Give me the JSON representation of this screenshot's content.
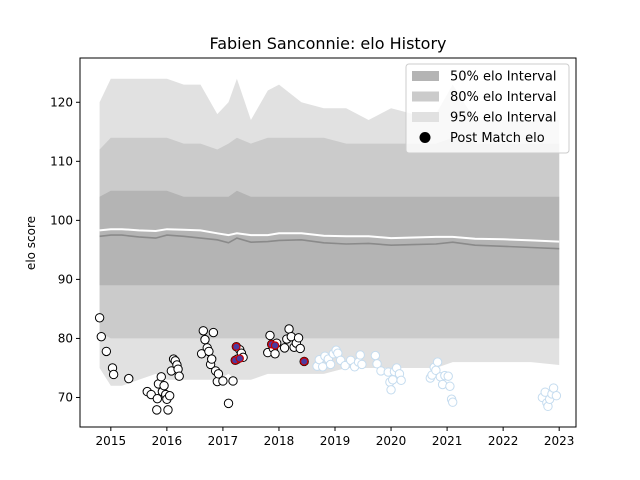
{
  "chart_data": {
    "type": "scatter",
    "title": "Fabien Sanconnie: elo History",
    "xlabel": "",
    "ylabel": "elo score",
    "xlim": [
      2014.45,
      2023.3
    ],
    "ylim": [
      65,
      127.5
    ],
    "x_ticks": [
      2015,
      2016,
      2017,
      2018,
      2019,
      2020,
      2021,
      2022,
      2023
    ],
    "y_ticks": [
      70,
      80,
      90,
      100,
      110,
      120
    ],
    "legend_position": "top-right",
    "legend": [
      {
        "label": "50% elo Interval",
        "kind": "band",
        "color": "#b4b4b4"
      },
      {
        "label": "80% elo Interval",
        "kind": "band",
        "color": "#cbcbcb"
      },
      {
        "label": "95% elo Interval",
        "kind": "band",
        "color": "#e1e1e1"
      },
      {
        "label": "Post Match elo",
        "kind": "marker",
        "color": "#000000"
      }
    ],
    "colors": {
      "band50": "#b4b4b4",
      "band80": "#cbcbcb",
      "band95": "#e1e1e1",
      "mean_line": "#ffffff",
      "median_line": "#8a8a8a",
      "match_edge": "#000000",
      "match_edge_faded": "#c5dcef",
      "highlight_edge": "#cc0000",
      "highlight_fill": "#4b3ca0"
    },
    "series": [
      {
        "name": "95% elo Interval",
        "type": "area",
        "x": [
          2014.8,
          2015.0,
          2015.2,
          2015.5,
          2015.8,
          2016.0,
          2016.3,
          2016.6,
          2016.9,
          2017.1,
          2017.25,
          2017.5,
          2017.8,
          2018.0,
          2018.4,
          2018.8,
          2019.2,
          2019.6,
          2020.0,
          2020.4,
          2020.8,
          2021.1,
          2021.5,
          2022.0,
          2022.5,
          2023.0
        ],
        "upper": [
          120,
          124,
          124,
          124,
          124,
          124,
          123,
          123,
          118,
          120,
          124,
          117,
          122,
          123,
          120,
          119,
          119,
          117,
          119,
          118,
          118,
          123,
          117,
          117,
          117,
          117
        ],
        "lower": [
          75,
          72,
          72,
          73,
          74,
          73,
          73,
          73,
          73,
          74,
          73,
          73,
          74,
          74,
          74,
          74,
          75,
          75,
          75,
          75,
          75,
          76,
          76,
          76,
          76,
          75.5
        ]
      },
      {
        "name": "80% elo Interval",
        "type": "area",
        "x": [
          2014.8,
          2015.0,
          2015.2,
          2015.5,
          2015.8,
          2016.0,
          2016.3,
          2016.6,
          2016.9,
          2017.1,
          2017.25,
          2017.5,
          2017.8,
          2018.0,
          2018.4,
          2018.8,
          2019.2,
          2019.6,
          2020.0,
          2020.4,
          2020.8,
          2021.1,
          2021.5,
          2022.0,
          2022.5,
          2023.0
        ],
        "upper": [
          112,
          114,
          114,
          114,
          114,
          114,
          113,
          113,
          112,
          113,
          114,
          113,
          114,
          114,
          114,
          114,
          113,
          113,
          113,
          113,
          113,
          114,
          113,
          113,
          113,
          113
        ],
        "lower": [
          81,
          80,
          80,
          80,
          80,
          80,
          80,
          80,
          80,
          80,
          80,
          80,
          80,
          80,
          80,
          80,
          80,
          80,
          80,
          80,
          80,
          80,
          80,
          80,
          80,
          80
        ]
      },
      {
        "name": "50% elo Interval",
        "type": "area",
        "x": [
          2014.8,
          2015.0,
          2015.2,
          2015.5,
          2015.8,
          2016.0,
          2016.3,
          2016.6,
          2016.9,
          2017.1,
          2017.25,
          2017.5,
          2017.8,
          2018.0,
          2018.4,
          2018.8,
          2019.2,
          2019.6,
          2020.0,
          2020.4,
          2020.8,
          2021.1,
          2021.5,
          2022.0,
          2022.5,
          2023.0
        ],
        "upper": [
          104,
          105,
          105,
          105,
          105,
          105,
          104,
          104,
          104,
          104,
          105,
          104,
          104,
          104,
          104,
          104,
          104,
          104,
          104,
          104,
          104,
          104,
          104,
          104,
          104,
          104
        ],
        "lower": [
          89,
          89,
          89,
          89,
          89,
          89,
          89,
          89,
          89,
          89,
          89,
          89,
          89,
          89,
          89,
          89,
          89,
          89,
          89,
          89,
          89,
          89,
          89,
          89,
          89,
          89
        ]
      },
      {
        "type": "line",
        "x": [
          2014.8,
          2015.0,
          2015.2,
          2015.5,
          2015.8,
          2016.0,
          2016.3,
          2016.6,
          2016.9,
          2017.1,
          2017.25,
          2017.5,
          2017.8,
          2018.0,
          2018.4,
          2018.8,
          2019.2,
          2019.6,
          2020.0,
          2020.4,
          2020.8,
          2021.1,
          2021.5,
          2022.0,
          2022.5,
          2023.0
        ],
        "values": [
          98.3,
          98.5,
          98.5,
          98.3,
          98.2,
          98.5,
          98.4,
          98.3,
          97.8,
          97.5,
          97.8,
          97.5,
          97.5,
          97.8,
          97.8,
          97.4,
          97.3,
          97.3,
          97.0,
          97.1,
          97.2,
          97.2,
          96.9,
          96.8,
          96.6,
          96.4
        ]
      },
      {
        "type": "line",
        "x": [
          2014.8,
          2015.0,
          2015.2,
          2015.5,
          2015.8,
          2016.0,
          2016.3,
          2016.6,
          2016.9,
          2017.1,
          2017.25,
          2017.5,
          2017.8,
          2018.0,
          2018.4,
          2018.8,
          2019.2,
          2019.6,
          2020.0,
          2020.4,
          2020.8,
          2021.1,
          2021.5,
          2022.0,
          2022.5,
          2023.0
        ],
        "values": [
          97.3,
          97.5,
          97.5,
          97.2,
          97.0,
          97.5,
          97.3,
          97.0,
          96.7,
          96.2,
          97.0,
          96.3,
          96.4,
          96.6,
          96.7,
          96.2,
          96.0,
          96.1,
          95.8,
          95.9,
          96.0,
          96.3,
          95.8,
          95.6,
          95.4,
          95.2
        ]
      },
      {
        "name": "Post Match elo",
        "type": "scatter",
        "points": [
          [
            2014.8,
            83.5
          ],
          [
            2014.83,
            80.3
          ],
          [
            2014.92,
            77.8
          ],
          [
            2015.03,
            75.0
          ],
          [
            2015.05,
            73.9
          ],
          [
            2015.32,
            73.2
          ],
          [
            2015.65,
            71.0
          ],
          [
            2015.72,
            70.5
          ],
          [
            2015.82,
            67.9
          ],
          [
            2015.83,
            69.8
          ],
          [
            2015.85,
            72.3
          ],
          [
            2015.9,
            73.5
          ],
          [
            2015.92,
            71.0
          ],
          [
            2015.95,
            72.0
          ],
          [
            2015.98,
            70.5
          ],
          [
            2016.0,
            69.7
          ],
          [
            2016.02,
            67.9
          ],
          [
            2016.05,
            70.3
          ],
          [
            2016.08,
            74.5
          ],
          [
            2016.12,
            76.5
          ],
          [
            2016.15,
            76.2
          ],
          [
            2016.18,
            75.5
          ],
          [
            2016.2,
            74.8
          ],
          [
            2016.22,
            73.6
          ],
          [
            2016.62,
            77.4
          ],
          [
            2016.65,
            81.3
          ],
          [
            2016.68,
            79.8
          ],
          [
            2016.72,
            78.4
          ],
          [
            2016.75,
            77.8
          ],
          [
            2016.78,
            75.6
          ],
          [
            2016.8,
            76.5
          ],
          [
            2016.83,
            81.0
          ],
          [
            2016.87,
            74.5
          ],
          [
            2016.9,
            72.7
          ],
          [
            2016.92,
            74.0
          ],
          [
            2017.0,
            72.8
          ],
          [
            2017.1,
            69.0
          ],
          [
            2017.18,
            72.8
          ],
          [
            2017.22,
            76.3
          ],
          [
            2017.24,
            78.6
          ],
          [
            2017.26,
            76.5
          ],
          [
            2017.3,
            78.1
          ],
          [
            2017.33,
            77.5
          ],
          [
            2017.36,
            76.8
          ],
          [
            2017.8,
            77.6
          ],
          [
            2017.84,
            80.5
          ],
          [
            2017.87,
            79.0
          ],
          [
            2017.9,
            78.3
          ],
          [
            2017.93,
            77.4
          ],
          [
            2017.96,
            79.2
          ],
          [
            2018.1,
            78.4
          ],
          [
            2018.14,
            79.9
          ],
          [
            2018.18,
            81.6
          ],
          [
            2018.22,
            80.3
          ],
          [
            2018.27,
            78.5
          ],
          [
            2018.31,
            79.2
          ],
          [
            2018.35,
            80.1
          ],
          [
            2018.38,
            78.3
          ],
          [
            2018.45,
            76.1
          ]
        ],
        "highlighted": [
          [
            2017.24,
            78.6
          ],
          [
            2017.22,
            76.3
          ],
          [
            2017.3,
            76.6
          ],
          [
            2017.87,
            79.0
          ],
          [
            2017.93,
            78.8
          ],
          [
            2018.45,
            76.1
          ]
        ],
        "faded_points": [
          [
            2018.68,
            75.3
          ],
          [
            2018.72,
            76.4
          ],
          [
            2018.78,
            75.2
          ],
          [
            2018.82,
            77.0
          ],
          [
            2018.88,
            76.5
          ],
          [
            2018.92,
            75.6
          ],
          [
            2018.97,
            77.4
          ],
          [
            2019.02,
            78.0
          ],
          [
            2019.05,
            77.5
          ],
          [
            2019.1,
            76.3
          ],
          [
            2019.18,
            75.4
          ],
          [
            2019.28,
            76.3
          ],
          [
            2019.35,
            75.2
          ],
          [
            2019.42,
            76.0
          ],
          [
            2019.45,
            77.2
          ],
          [
            2019.48,
            75.6
          ],
          [
            2019.72,
            77.1
          ],
          [
            2019.75,
            75.7
          ],
          [
            2019.82,
            74.5
          ],
          [
            2019.95,
            74.3
          ],
          [
            2019.98,
            72.6
          ],
          [
            2020.0,
            71.3
          ],
          [
            2020.03,
            73.0
          ],
          [
            2020.06,
            74.4
          ],
          [
            2020.1,
            75.0
          ],
          [
            2020.15,
            74.0
          ],
          [
            2020.18,
            72.9
          ],
          [
            2020.7,
            73.3
          ],
          [
            2020.73,
            73.8
          ],
          [
            2020.77,
            75.1
          ],
          [
            2020.8,
            74.6
          ],
          [
            2020.83,
            76.0
          ],
          [
            2020.88,
            73.5
          ],
          [
            2020.92,
            72.2
          ],
          [
            2020.96,
            73.7
          ],
          [
            2021.02,
            73.6
          ],
          [
            2021.05,
            71.9
          ],
          [
            2021.08,
            69.7
          ],
          [
            2021.1,
            69.2
          ],
          [
            2022.7,
            70.0
          ],
          [
            2022.75,
            70.9
          ],
          [
            2022.78,
            69.1
          ],
          [
            2022.8,
            68.5
          ],
          [
            2022.83,
            69.7
          ],
          [
            2022.87,
            70.6
          ],
          [
            2022.9,
            71.6
          ],
          [
            2022.95,
            70.3
          ]
        ]
      }
    ]
  }
}
